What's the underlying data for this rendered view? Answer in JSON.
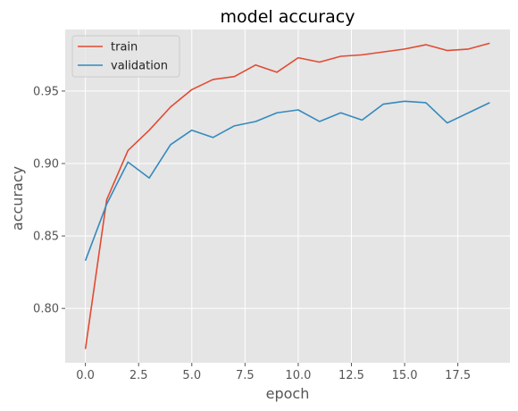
{
  "chart_data": {
    "type": "line",
    "title": "model accuracy",
    "xlabel": "epoch",
    "ylabel": "accuracy",
    "xlim": [
      -0.95,
      19.95
    ],
    "ylim": [
      0.7625,
      0.9925
    ],
    "xticks": [
      0.0,
      2.5,
      5.0,
      7.5,
      10.0,
      12.5,
      15.0,
      17.5
    ],
    "xtick_labels": [
      "0.0",
      "2.5",
      "5.0",
      "7.5",
      "10.0",
      "12.5",
      "15.0",
      "17.5"
    ],
    "yticks": [
      0.8,
      0.85,
      0.9,
      0.95
    ],
    "ytick_labels": [
      "0.80",
      "0.85",
      "0.90",
      "0.95"
    ],
    "grid": true,
    "legend_position": "top-left",
    "x": [
      0,
      1,
      2,
      3,
      4,
      5,
      6,
      7,
      8,
      9,
      10,
      11,
      12,
      13,
      14,
      15,
      16,
      17,
      18,
      19
    ],
    "series": [
      {
        "name": "train",
        "color": "#E24A33",
        "values": [
          0.772,
          0.875,
          0.909,
          0.923,
          0.939,
          0.951,
          0.958,
          0.96,
          0.968,
          0.963,
          0.973,
          0.97,
          0.974,
          0.975,
          0.977,
          0.979,
          0.982,
          0.978,
          0.979,
          0.983
        ]
      },
      {
        "name": "validation",
        "color": "#348ABD",
        "values": [
          0.833,
          0.872,
          0.901,
          0.89,
          0.913,
          0.923,
          0.918,
          0.926,
          0.929,
          0.935,
          0.937,
          0.929,
          0.935,
          0.93,
          0.941,
          0.943,
          0.942,
          0.928,
          0.935,
          0.942
        ]
      }
    ]
  }
}
